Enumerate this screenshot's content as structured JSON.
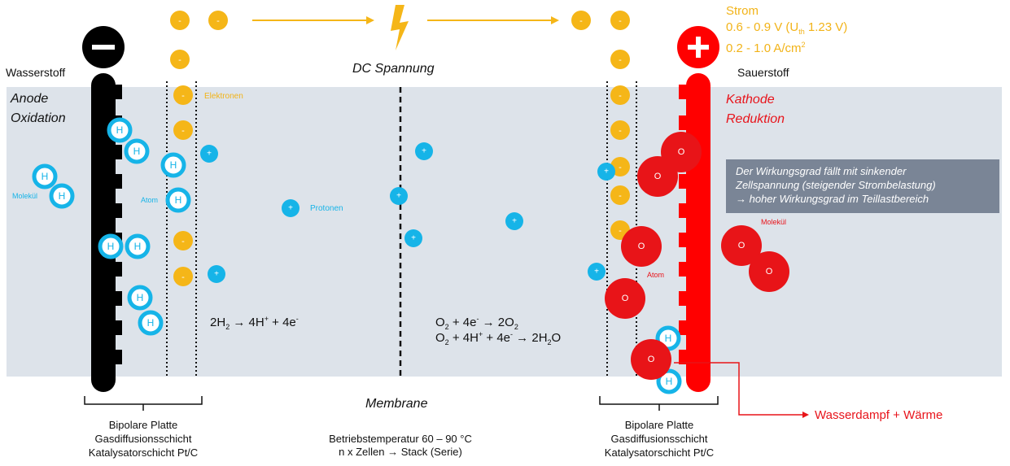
{
  "labels": {
    "hydrogen_side": "Wasserstoff",
    "oxygen_side": "Sauerstoff",
    "anode": "Anode",
    "oxidation": "Oxidation",
    "kathode": "Kathode",
    "reduktion": "Reduktion",
    "dc_voltage": "DC Spannung",
    "electrons": "Elektronen",
    "protons": "Protonen",
    "molecule_left": "Molekül",
    "atom_left": "Atom",
    "molecule_right": "Molekül",
    "atom_right": "Atom",
    "membrane": "Membrane",
    "operating_temp": "Betriebstemperatur 60 – 90 °C",
    "cells_stack": "n x Zellen → Stack (Serie)",
    "water_vapor": "Wasserdampf + Wärme",
    "minus_sign": "−",
    "plus_sign": "+",
    "electron_sign": "-",
    "proton_sign": "+",
    "hydrogen_symbol": "H",
    "oxygen_symbol": "O"
  },
  "current": {
    "title": "Strom",
    "voltage_prefix": "0.6 - 0.9 V (U",
    "voltage_sub": "th",
    "voltage_suffix": " 1.23 V)",
    "density_prefix": "0.2 - 1.0 A/cm",
    "density_sup": "2"
  },
  "layers_left": [
    "Bipolare Platte",
    "Gasdiffusionsschicht",
    "Katalysatorschicht Pt/C"
  ],
  "layers_right": [
    "Bipolare Platte",
    "Gasdiffusionsschicht",
    "Katalysatorschicht Pt/C"
  ],
  "note": {
    "line1": "Der Wirkungsgrad fällt mit sinkender",
    "line2": "Zellspannung (steigender Strombelastung)",
    "line3": "→ hoher Wirkungsgrad im Teillastbereich"
  },
  "equations": {
    "anode_eq": {
      "a": "2H",
      "a_sub": "2",
      "b": " → 4H",
      "b_sup": "+",
      "c": " + 4e",
      "c_sup": "-"
    },
    "cathode_eq1": {
      "a": "O",
      "a_sub": "2",
      "b": " + 4e",
      "b_sup": "-",
      "c": " → 2O",
      "c_sub": "2"
    },
    "cathode_eq2": {
      "a": "O",
      "a_sub": "2",
      "b": " + 4H",
      "b_sup": "+",
      "c": " + 4e",
      "c_sup": "-",
      "d": " → 2H",
      "d_sub": "2",
      "e": "O"
    }
  },
  "colors": {
    "panel": "#dde3ea",
    "anode_plate": "#000000",
    "cathode_plate": "#ff0000",
    "electron": "#f5b618",
    "proton": "#16b4e8",
    "oxygen": "#e81418",
    "hydrogen_ring": "#16b4e8",
    "note_box": "#7a8596"
  }
}
